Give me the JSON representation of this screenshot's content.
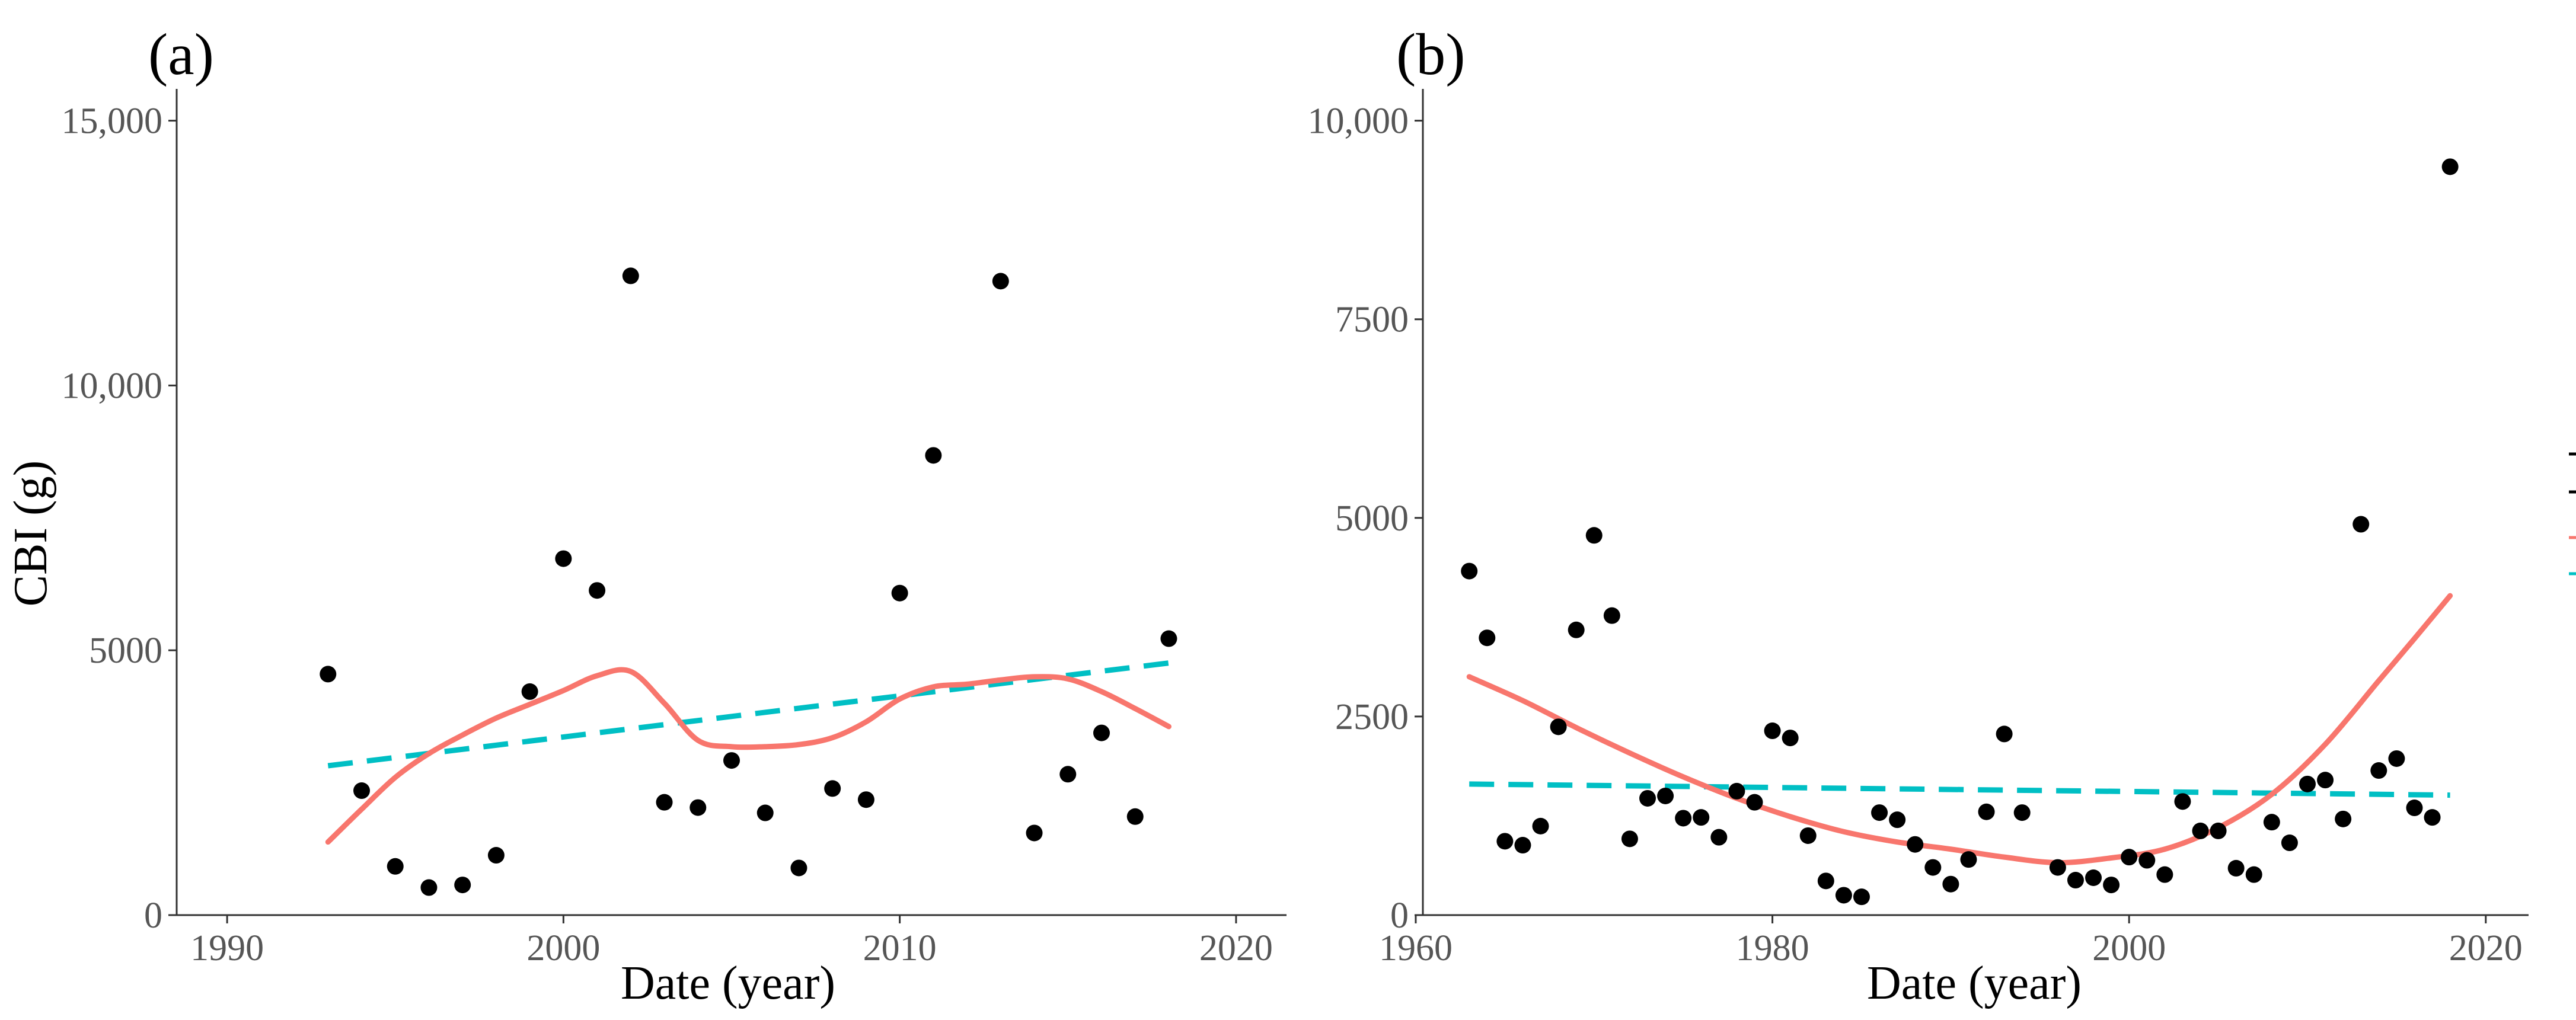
{
  "colors": {
    "smooth": "#f8766d",
    "linear": "#00bfc4",
    "point": "#000000"
  },
  "chart_data": [
    {
      "type": "scatter",
      "panel": "(a)",
      "xlabel": "Date (year)",
      "ylabel": "CBI (g)",
      "xlim": [
        1988.5,
        2021.5
      ],
      "ylim": [
        0,
        15600
      ],
      "xticks": [
        1990,
        2000,
        2010,
        2020
      ],
      "xtick_labels": [
        "1990",
        "2000",
        "2010",
        "2020"
      ],
      "yticks": [
        0,
        5000,
        10000,
        15000
      ],
      "ytick_labels": [
        "0",
        "5000",
        "10,000",
        "15,000"
      ],
      "points": {
        "x": [
          1993,
          1994,
          1995,
          1996,
          1997,
          1998,
          1999,
          2000,
          2001,
          2002,
          2003,
          2004,
          2005,
          2006,
          2007,
          2008,
          2009,
          2010,
          2011,
          2013,
          2014,
          2015,
          2016,
          2017,
          2018
        ],
        "y": [
          4550,
          2350,
          920,
          520,
          570,
          1130,
          4220,
          6730,
          6130,
          12070,
          2130,
          2030,
          2920,
          1930,
          890,
          2390,
          2180,
          6080,
          8680,
          11970,
          1550,
          2660,
          3440,
          1860,
          5220
        ]
      },
      "smooth": {
        "x": [
          1993,
          1994,
          1995,
          1996,
          1997,
          1998,
          1999,
          2000,
          2001,
          2002,
          2003,
          2004,
          2005,
          2006,
          2007,
          2008,
          2009,
          2010,
          2011,
          2012,
          2013,
          2014,
          2015,
          2016,
          2017,
          2018
        ],
        "y": [
          1380,
          2000,
          2600,
          3050,
          3400,
          3720,
          3980,
          4240,
          4520,
          4600,
          4000,
          3300,
          3180,
          3180,
          3220,
          3350,
          3650,
          4080,
          4310,
          4360,
          4440,
          4500,
          4460,
          4220,
          3900,
          3560
        ]
      },
      "linear": {
        "x": [
          1993,
          2018
        ],
        "y": [
          2820,
          4760
        ]
      }
    },
    {
      "type": "scatter",
      "panel": "(b)",
      "xlabel": "Date (year)",
      "ylabel": "",
      "xlim": [
        1960.4,
        2022.4
      ],
      "ylim": [
        0,
        10400
      ],
      "xticks": [
        1960,
        1980,
        2000,
        2020
      ],
      "xtick_labels": [
        "1960",
        "1980",
        "2000",
        "2020"
      ],
      "yticks": [
        0,
        2500,
        5000,
        7500,
        10000
      ],
      "ytick_labels": [
        "0",
        "2500",
        "5000",
        "7500",
        "10,000"
      ],
      "points": {
        "x": [
          1963,
          1964,
          1965,
          1966,
          1967,
          1968,
          1969,
          1970,
          1971,
          1972,
          1973,
          1974,
          1975,
          1976,
          1977,
          1978,
          1979,
          1980,
          1981,
          1982,
          1983,
          1984,
          1985,
          1986,
          1987,
          1988,
          1989,
          1990,
          1991,
          1992,
          1993,
          1994,
          1996,
          1997,
          1998,
          1999,
          2000,
          2001,
          2002,
          2003,
          2004,
          2005,
          2006,
          2007,
          2008,
          2009,
          2010,
          2011,
          2012,
          2013,
          2014,
          2015,
          2016,
          2017,
          2018
        ],
        "y": [
          4330,
          3490,
          930,
          880,
          1120,
          2370,
          3590,
          4780,
          3770,
          960,
          1470,
          1500,
          1220,
          1230,
          980,
          1560,
          1420,
          2320,
          2230,
          1000,
          430,
          250,
          230,
          1290,
          1200,
          890,
          600,
          390,
          700,
          1300,
          2280,
          1290,
          600,
          440,
          470,
          380,
          730,
          690,
          510,
          1430,
          1060,
          1060,
          590,
          510,
          1170,
          910,
          1650,
          1700,
          1210,
          4920,
          1820,
          1970,
          1350,
          1230,
          9420
        ]
      },
      "smooth": {
        "x": [
          1963,
          1966,
          1969,
          1972,
          1975,
          1978,
          1981,
          1984,
          1987,
          1990,
          1993,
          1996,
          1999,
          2002,
          2005,
          2008,
          2011,
          2014,
          2016,
          2018
        ],
        "y": [
          3000,
          2700,
          2360,
          2040,
          1740,
          1470,
          1240,
          1050,
          920,
          830,
          730,
          660,
          720,
          830,
          1100,
          1520,
          2150,
          2950,
          3480,
          4020
        ]
      },
      "linear": {
        "x": [
          1963,
          2018
        ],
        "y": [
          1650,
          1510
        ]
      }
    }
  ]
}
